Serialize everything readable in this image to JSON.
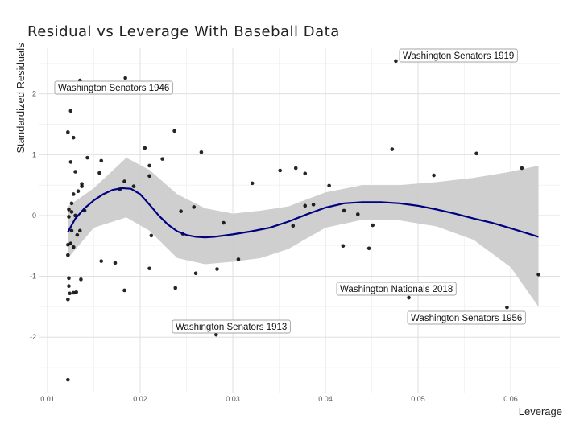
{
  "chart_data": {
    "type": "scatter",
    "title": "Residual vs Leverage With Baseball Data",
    "xlabel": "Leverage",
    "ylabel": "Standardized Residuals",
    "xlim": [
      0.00904,
      0.0653
    ],
    "ylim": [
      -2.91,
      2.75
    ],
    "grid": true,
    "x_ticks": [
      0.01,
      0.02,
      0.03,
      0.04,
      0.05,
      0.06
    ],
    "x_tick_labels": [
      "0.01",
      "0.02",
      "0.03",
      "0.04",
      "0.05",
      "0.06"
    ],
    "y_ticks": [
      -2,
      -1,
      0,
      1,
      2
    ],
    "y_tick_labels": [
      "-2",
      "-1",
      "0",
      "1",
      "2"
    ],
    "point_color": "#000000",
    "smooth_color": "#000080",
    "band_color": "#cccccc",
    "points": [
      [
        0.0122,
        -2.7
      ],
      [
        0.0135,
        2.22
      ],
      [
        0.0184,
        2.26
      ],
      [
        0.0476,
        2.54
      ],
      [
        0.0125,
        1.72
      ],
      [
        0.0122,
        1.37
      ],
      [
        0.0128,
        1.28
      ],
      [
        0.0237,
        1.39
      ],
      [
        0.0205,
        1.11
      ],
      [
        0.0266,
        1.04
      ],
      [
        0.0472,
        1.09
      ],
      [
        0.0563,
        1.02
      ],
      [
        0.0612,
        0.78
      ],
      [
        0.0517,
        0.66
      ],
      [
        0.0125,
        0.88
      ],
      [
        0.0143,
        0.95
      ],
      [
        0.0158,
        0.9
      ],
      [
        0.0224,
        0.93
      ],
      [
        0.021,
        0.82
      ],
      [
        0.021,
        0.65
      ],
      [
        0.013,
        0.72
      ],
      [
        0.0156,
        0.7
      ],
      [
        0.0321,
        0.53
      ],
      [
        0.0351,
        0.74
      ],
      [
        0.0368,
        0.78
      ],
      [
        0.0378,
        0.69
      ],
      [
        0.0404,
        0.49
      ],
      [
        0.0137,
        0.52
      ],
      [
        0.0137,
        0.48
      ],
      [
        0.0133,
        0.4
      ],
      [
        0.0128,
        0.35
      ],
      [
        0.0183,
        0.56
      ],
      [
        0.0193,
        0.48
      ],
      [
        0.0178,
        0.43
      ],
      [
        0.0126,
        0.2
      ],
      [
        0.0123,
        0.1
      ],
      [
        0.0126,
        0.06
      ],
      [
        0.0123,
        -0.02
      ],
      [
        0.013,
        0.0
      ],
      [
        0.014,
        0.08
      ],
      [
        0.0244,
        0.07
      ],
      [
        0.0258,
        0.14
      ],
      [
        0.0378,
        0.16
      ],
      [
        0.0387,
        0.18
      ],
      [
        0.042,
        0.08
      ],
      [
        0.0435,
        0.02
      ],
      [
        0.0451,
        -0.16
      ],
      [
        0.0365,
        -0.17
      ],
      [
        0.0246,
        -0.3
      ],
      [
        0.029,
        -0.12
      ],
      [
        0.0212,
        -0.33
      ],
      [
        0.0132,
        -0.32
      ],
      [
        0.0126,
        -0.25
      ],
      [
        0.0135,
        -0.25
      ],
      [
        0.0122,
        -0.48
      ],
      [
        0.0125,
        -0.46
      ],
      [
        0.0128,
        -0.52
      ],
      [
        0.0122,
        -0.65
      ],
      [
        0.0419,
        -0.5
      ],
      [
        0.0447,
        -0.54
      ],
      [
        0.0306,
        -0.72
      ],
      [
        0.0158,
        -0.75
      ],
      [
        0.0173,
        -0.78
      ],
      [
        0.021,
        -0.87
      ],
      [
        0.026,
        -0.95
      ],
      [
        0.0283,
        -0.88
      ],
      [
        0.0136,
        -1.05
      ],
      [
        0.0123,
        -1.03
      ],
      [
        0.0123,
        -1.16
      ],
      [
        0.0124,
        -1.28
      ],
      [
        0.0128,
        -1.27
      ],
      [
        0.0131,
        -1.26
      ],
      [
        0.0122,
        -1.38
      ],
      [
        0.0183,
        -1.23
      ],
      [
        0.0238,
        -1.19
      ],
      [
        0.049,
        -1.35
      ],
      [
        0.0596,
        -1.51
      ],
      [
        0.063,
        -0.97
      ],
      [
        0.0282,
        -1.96
      ]
    ],
    "smooth": {
      "x": [
        0.0122,
        0.013,
        0.014,
        0.015,
        0.016,
        0.017,
        0.018,
        0.019,
        0.02,
        0.021,
        0.022,
        0.023,
        0.024,
        0.025,
        0.026,
        0.027,
        0.028,
        0.03,
        0.032,
        0.034,
        0.036,
        0.038,
        0.04,
        0.042,
        0.044,
        0.046,
        0.048,
        0.05,
        0.052,
        0.054,
        0.056,
        0.058,
        0.06,
        0.063
      ],
      "y": [
        -0.27,
        -0.05,
        0.12,
        0.25,
        0.35,
        0.42,
        0.45,
        0.44,
        0.35,
        0.18,
        0.0,
        -0.15,
        -0.26,
        -0.32,
        -0.35,
        -0.36,
        -0.35,
        -0.31,
        -0.26,
        -0.2,
        -0.1,
        0.02,
        0.13,
        0.2,
        0.22,
        0.22,
        0.2,
        0.16,
        0.1,
        0.03,
        -0.05,
        -0.12,
        -0.21,
        -0.35
      ]
    },
    "band": {
      "x": [
        0.0122,
        0.015,
        0.0185,
        0.021,
        0.024,
        0.027,
        0.03,
        0.033,
        0.036,
        0.04,
        0.044,
        0.048,
        0.052,
        0.056,
        0.06,
        0.063
      ],
      "upper": [
        0.15,
        0.45,
        0.95,
        0.75,
        0.35,
        0.12,
        0.03,
        0.08,
        0.15,
        0.38,
        0.5,
        0.5,
        0.55,
        0.62,
        0.72,
        0.82
      ],
      "lower": [
        -0.7,
        -0.2,
        -0.03,
        -0.25,
        -0.7,
        -0.8,
        -0.76,
        -0.7,
        -0.55,
        -0.2,
        -0.07,
        -0.08,
        -0.18,
        -0.4,
        -0.85,
        -1.5
      ]
    },
    "annotations": [
      {
        "text": "Washington Senators 1946"
      },
      {
        "text": "Washington Senators 1919"
      },
      {
        "text": "Washington Nationals 2018"
      },
      {
        "text": "Washington Senators 1956"
      },
      {
        "text": "Washington Senators 1913"
      }
    ]
  }
}
